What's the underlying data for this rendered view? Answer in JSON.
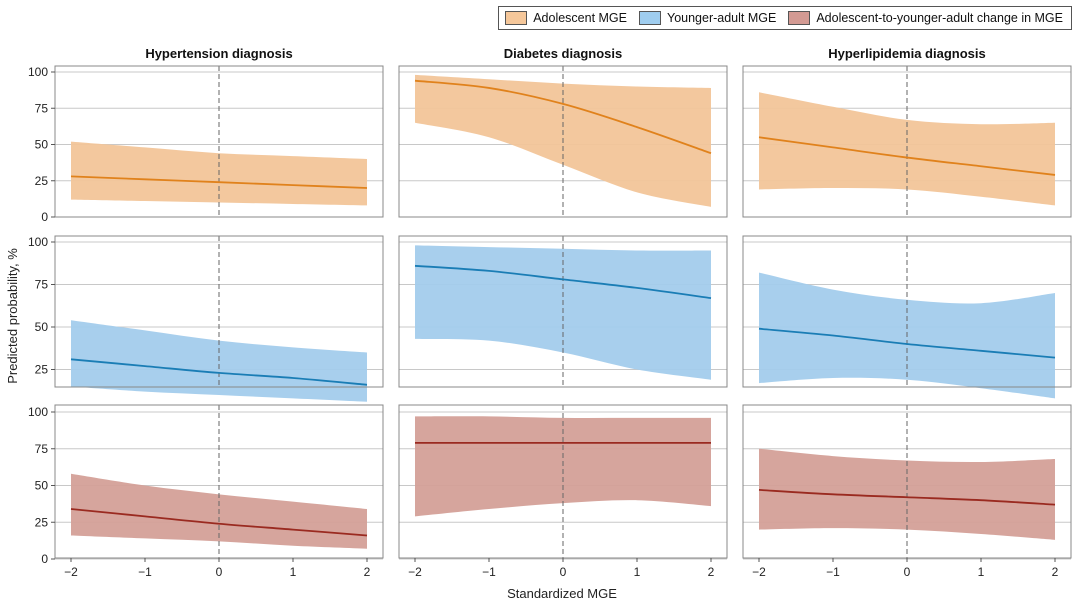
{
  "legend": [
    {
      "label": "Adolescent MGE",
      "fill": "#f5c79a"
    },
    {
      "label": "Younger-adult MGE",
      "fill": "#9fcdef"
    },
    {
      "label": "Adolescent-to-younger-adult change in MGE",
      "fill": "#d39a93"
    }
  ],
  "colors": {
    "adolescent": {
      "band": "#f2c599",
      "line": "#e0821c"
    },
    "younger_adult": {
      "band": "#a3ccec",
      "line": "#1a7db5"
    },
    "change": {
      "band": "#d4a098",
      "line": "#9a2a20"
    },
    "panel_border": "#888888",
    "grid": "#c8c8c8",
    "zero_line": "#666666"
  },
  "chart_data": {
    "type": "area",
    "xlabel": "Standardized MGE",
    "ylabel": "Predicted probability, %",
    "xlim": [
      -2,
      2
    ],
    "ylim": [
      0,
      100
    ],
    "x_ticks": [
      -2,
      -1,
      0,
      1,
      2
    ],
    "x_tick_labels": [
      "−2",
      "−1",
      "0",
      "1",
      "2"
    ],
    "y_ticks": [
      0,
      25,
      50,
      75,
      100
    ],
    "y_tick_labels": [
      [
        "0",
        "25",
        "50",
        "75",
        "100"
      ],
      [
        "25",
        "50",
        "75",
        "100"
      ],
      [
        "0",
        "25",
        "50",
        "75",
        "100"
      ]
    ],
    "grid": true,
    "columns": [
      "Hypertension diagnosis",
      "Diabetes diagnosis",
      "Hyperlipidemia diagnosis"
    ],
    "rows": [
      "adolescent",
      "younger_adult",
      "change"
    ],
    "x": [
      -2,
      -1,
      0,
      1,
      2
    ],
    "panels": [
      {
        "row": "adolescent",
        "column": "Hypertension diagnosis",
        "estimate": [
          28,
          26,
          24,
          22,
          20
        ],
        "lower": [
          12,
          11,
          10,
          9,
          8
        ],
        "upper": [
          52,
          48,
          44,
          42,
          40
        ]
      },
      {
        "row": "adolescent",
        "column": "Diabetes diagnosis",
        "estimate": [
          94,
          89,
          78,
          62,
          44
        ],
        "lower": [
          65,
          55,
          36,
          17,
          7
        ],
        "upper": [
          98,
          95,
          92,
          90,
          89
        ]
      },
      {
        "row": "adolescent",
        "column": "Hyperlipidemia diagnosis",
        "estimate": [
          55,
          48,
          41,
          35,
          29
        ],
        "lower": [
          19,
          20,
          19,
          14,
          8
        ],
        "upper": [
          86,
          76,
          67,
          64,
          65
        ]
      },
      {
        "row": "younger_adult",
        "column": "Hypertension diagnosis",
        "estimate": [
          31,
          27,
          23,
          20,
          16
        ],
        "lower": [
          15,
          12,
          10,
          8,
          6
        ],
        "upper": [
          54,
          48,
          42,
          38,
          35
        ]
      },
      {
        "row": "younger_adult",
        "column": "Diabetes diagnosis",
        "estimate": [
          86,
          83,
          78,
          73,
          67
        ],
        "lower": [
          43,
          42,
          35,
          25,
          19
        ],
        "upper": [
          98,
          97,
          96,
          95,
          95
        ]
      },
      {
        "row": "younger_adult",
        "column": "Hyperlipidemia diagnosis",
        "estimate": [
          49,
          45,
          40,
          36,
          32
        ],
        "lower": [
          17,
          20,
          19,
          14,
          8
        ],
        "upper": [
          82,
          72,
          66,
          64,
          70
        ]
      },
      {
        "row": "change",
        "column": "Hypertension diagnosis",
        "estimate": [
          34,
          29,
          24,
          20,
          16
        ],
        "lower": [
          16,
          14,
          12,
          9,
          7
        ],
        "upper": [
          58,
          50,
          44,
          39,
          34
        ]
      },
      {
        "row": "change",
        "column": "Diabetes diagnosis",
        "estimate": [
          79,
          79,
          79,
          79,
          79
        ],
        "lower": [
          29,
          34,
          38,
          40,
          36
        ],
        "upper": [
          97,
          97,
          96,
          96,
          96
        ]
      },
      {
        "row": "change",
        "column": "Hyperlipidemia diagnosis",
        "estimate": [
          47,
          44,
          42,
          40,
          37
        ],
        "lower": [
          20,
          21,
          20,
          17,
          13
        ],
        "upper": [
          75,
          70,
          67,
          66,
          68
        ]
      }
    ]
  }
}
